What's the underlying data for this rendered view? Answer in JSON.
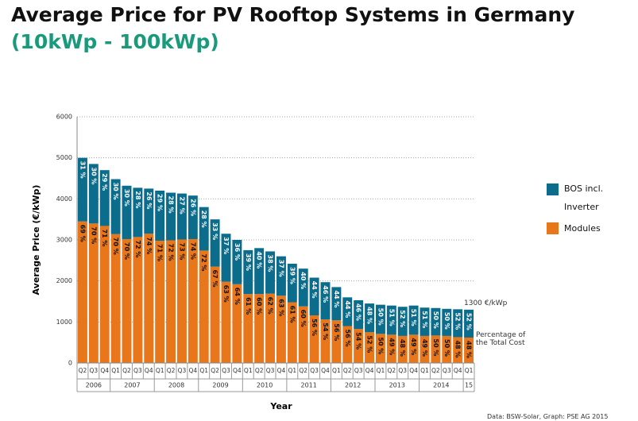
{
  "chart_data": {
    "type": "stacked_bar",
    "title": "Average Price for PV Rooftop Systems in Germany",
    "subtitle": "(10kWp - 100kWp)",
    "y_label": "Average Price (€/kWp)",
    "x_label": "Year",
    "categories": [
      "Q2",
      "Q3",
      "Q4",
      "Q1",
      "Q2",
      "Q3",
      "Q4",
      "Q1",
      "Q2",
      "Q3",
      "Q4",
      "Q1",
      "Q2",
      "Q3",
      "Q4",
      "Q1",
      "Q2",
      "Q3",
      "Q4",
      "Q1",
      "Q2",
      "Q3",
      "Q4",
      "Q1",
      "Q2",
      "Q3",
      "Q4",
      "Q1",
      "Q2",
      "Q3",
      "Q4",
      "Q1",
      "Q2",
      "Q3",
      "Q4",
      "Q1"
    ],
    "groups": [
      "2006",
      "2006",
      "2006",
      "2007",
      "2007",
      "2007",
      "2007",
      "2008",
      "2008",
      "2008",
      "2008",
      "2009",
      "2009",
      "2009",
      "2009",
      "2010",
      "2010",
      "2010",
      "2010",
      "2011",
      "2011",
      "2011",
      "2011",
      "2012",
      "2012",
      "2012",
      "2012",
      "2013",
      "2013",
      "2013",
      "2013",
      "2014",
      "2014",
      "2014",
      "2014",
      "15"
    ],
    "series": [
      {
        "name": "Modules",
        "color": "#e8761a",
        "label_color": "#111111",
        "values": [
          3450,
          3400,
          3340,
          3140,
          3020,
          3070,
          3150,
          2980,
          2990,
          3010,
          3020,
          2740,
          2350,
          1980,
          1920,
          1680,
          1680,
          1690,
          1640,
          1480,
          1380,
          1160,
          1060,
          1040,
          900,
          830,
          750,
          710,
          690,
          660,
          690,
          660,
          670,
          660,
          630,
          620
        ],
        "share_labels": [
          "69 %",
          "70 %",
          "71 %",
          "70 %",
          "70 %",
          "72 %",
          "74 %",
          "71 %",
          "72 %",
          "73 %",
          "74 %",
          "72 %",
          "67 %",
          "63 %",
          "64 %",
          "61 %",
          "60 %",
          "62 %",
          "63 %",
          "61 %",
          "60 %",
          "56 %",
          "54 %",
          "56 %",
          "56 %",
          "54 %",
          "52 %",
          "50 %",
          "49 %",
          "48 %",
          "49 %",
          "49 %",
          "50 %",
          "50 %",
          "48 %",
          "48 %"
        ]
      },
      {
        "name": "BOS incl. Inverter",
        "color": "#0b6c8c",
        "label_color": "#ffffff",
        "values": [
          1550,
          1450,
          1360,
          1340,
          1300,
          1200,
          1100,
          1220,
          1160,
          1120,
          1060,
          1060,
          1150,
          1170,
          1080,
          1070,
          1120,
          1030,
          960,
          940,
          920,
          920,
          910,
          810,
          700,
          700,
          700,
          710,
          710,
          710,
          710,
          690,
          670,
          660,
          680,
          680
        ],
        "share_labels": [
          "31 %",
          "30 %",
          "29 %",
          "30 %",
          "30 %",
          "28 %",
          "26 %",
          "29 %",
          "28 %",
          "27 %",
          "26 %",
          "28 %",
          "33 %",
          "37 %",
          "36 %",
          "39 %",
          "40 %",
          "38 %",
          "37 %",
          "39 %",
          "40 %",
          "44 %",
          "46 %",
          "44 %",
          "44 %",
          "46 %",
          "48 %",
          "50 %",
          "51 %",
          "52 %",
          "51 %",
          "51 %",
          "50 %",
          "50 %",
          "52 %",
          "52 %"
        ]
      }
    ],
    "ylim": [
      0,
      6000
    ],
    "yticks": [
      0,
      1000,
      2000,
      3000,
      4000,
      5000,
      6000
    ],
    "grid": true,
    "annotations": [
      "1300 €/kWp",
      "Percentage of the Total Cost"
    ],
    "source": "Data: BSW-Solar, Graph: PSE AG 2015"
  }
}
